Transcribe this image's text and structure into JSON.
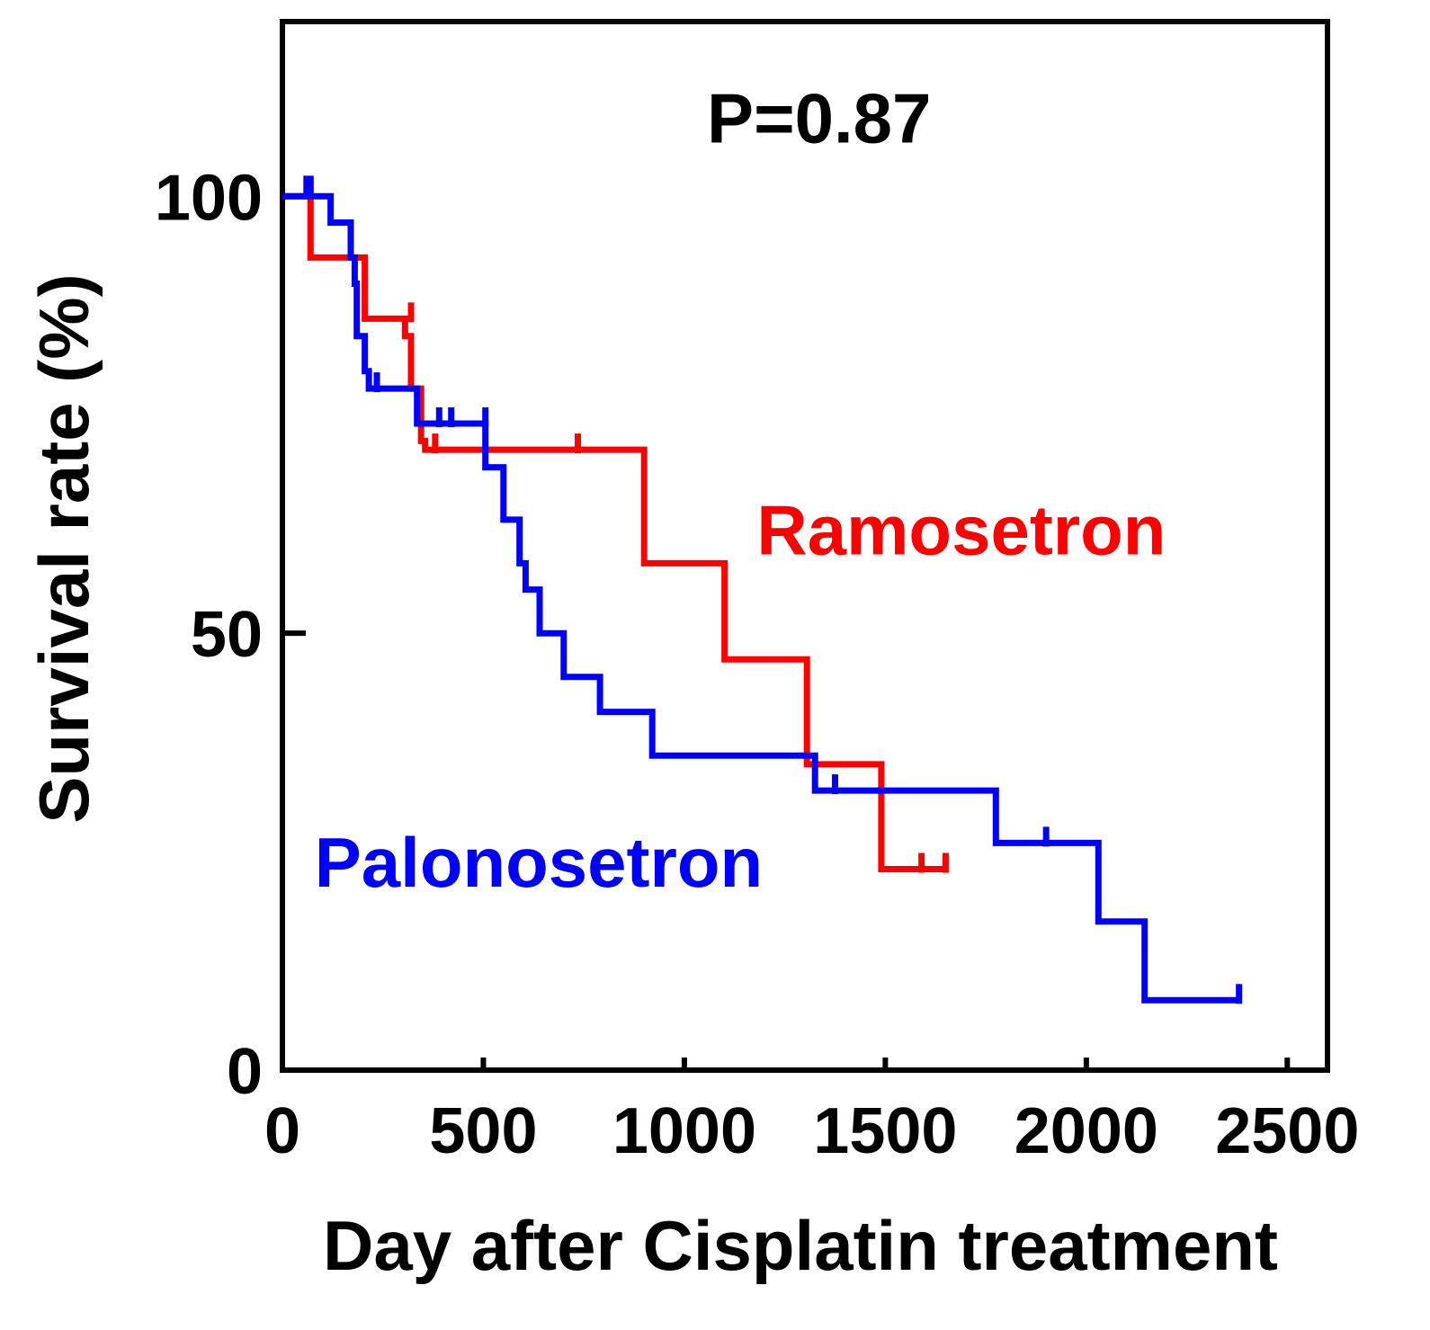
{
  "chart_data": {
    "type": "line",
    "subtype": "kaplan-meier step",
    "title": "",
    "xlabel": "Day after Cisplatin treatment",
    "ylabel": "Survival rate (%)",
    "xlim": [
      0,
      2600
    ],
    "ylim": [
      0,
      120
    ],
    "xticks": [
      0,
      500,
      1000,
      1500,
      2000,
      2500
    ],
    "yticks": [
      0,
      50,
      100
    ],
    "grid": false,
    "annotation": "P=0.87",
    "series": [
      {
        "name": "Ramosetron",
        "color": "#ff0000",
        "steps": [
          [
            0,
            100
          ],
          [
            70,
            100
          ],
          [
            70,
            93
          ],
          [
            205,
            93
          ],
          [
            205,
            86
          ],
          [
            305,
            86
          ],
          [
            305,
            84
          ],
          [
            320,
            84
          ],
          [
            320,
            78
          ],
          [
            345,
            78
          ],
          [
            345,
            72
          ],
          [
            355,
            72
          ],
          [
            355,
            71
          ],
          [
            900,
            71
          ],
          [
            900,
            58
          ],
          [
            1100,
            58
          ],
          [
            1100,
            47
          ],
          [
            1305,
            47
          ],
          [
            1305,
            35
          ],
          [
            1490,
            35
          ],
          [
            1490,
            23
          ],
          [
            1650,
            23
          ]
        ],
        "censors": [
          [
            320,
            86
          ],
          [
            380,
            71
          ],
          [
            735,
            71
          ],
          [
            1590,
            23
          ],
          [
            1650,
            23
          ]
        ]
      },
      {
        "name": "Palonosetron",
        "color": "#0000ff",
        "steps": [
          [
            0,
            100
          ],
          [
            60,
            100
          ],
          [
            60,
            102
          ],
          [
            70,
            102
          ],
          [
            70,
            100
          ],
          [
            120,
            100
          ],
          [
            120,
            97
          ],
          [
            170,
            97
          ],
          [
            170,
            93
          ],
          [
            180,
            93
          ],
          [
            180,
            90
          ],
          [
            185,
            90
          ],
          [
            185,
            84
          ],
          [
            205,
            84
          ],
          [
            205,
            80
          ],
          [
            215,
            80
          ],
          [
            215,
            78
          ],
          [
            335,
            78
          ],
          [
            335,
            74
          ],
          [
            505,
            74
          ],
          [
            505,
            69
          ],
          [
            550,
            69
          ],
          [
            550,
            63
          ],
          [
            590,
            63
          ],
          [
            590,
            58
          ],
          [
            605,
            58
          ],
          [
            605,
            55
          ],
          [
            640,
            55
          ],
          [
            640,
            50
          ],
          [
            700,
            50
          ],
          [
            700,
            45
          ],
          [
            790,
            45
          ],
          [
            790,
            41
          ],
          [
            920,
            41
          ],
          [
            920,
            36
          ],
          [
            1325,
            36
          ],
          [
            1325,
            32
          ],
          [
            1775,
            32
          ],
          [
            1775,
            26
          ],
          [
            2030,
            26
          ],
          [
            2030,
            17
          ],
          [
            2145,
            17
          ],
          [
            2145,
            8
          ],
          [
            2380,
            8
          ]
        ],
        "censors": [
          [
            235,
            78
          ],
          [
            390,
            74
          ],
          [
            420,
            74
          ],
          [
            505,
            74
          ],
          [
            1375,
            32
          ],
          [
            1900,
            26
          ],
          [
            2380,
            8
          ]
        ]
      }
    ],
    "series_labels": [
      {
        "name": "Ramosetron",
        "at": [
          1180,
          59
        ]
      },
      {
        "name": "Palonosetron",
        "at": [
          80,
          21
        ]
      }
    ],
    "annotation_at": [
      1280,
      107
    ]
  }
}
